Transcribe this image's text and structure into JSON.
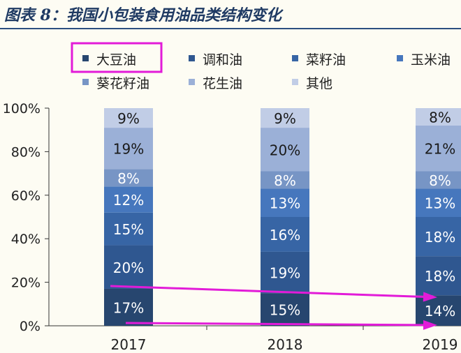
{
  "title": "图表 8：我国小包装食用油品类结构变化",
  "colors": {
    "background": "#fdfcf3",
    "title": "#1f3a63",
    "axis": "#333333",
    "highlight": "#e21bd8"
  },
  "chart_data": {
    "type": "bar",
    "stacked": true,
    "percent": true,
    "categories": [
      "2017",
      "2018",
      "2019"
    ],
    "ylim": [
      0,
      100
    ],
    "yticks": [
      "0%",
      "20%",
      "40%",
      "60%",
      "80%",
      "100%"
    ],
    "legend_position": "top",
    "highlighted_legend_item": "大豆油",
    "series": [
      {
        "name": "大豆油",
        "values": [
          17,
          15,
          14
        ],
        "labels": [
          "17%",
          "15%",
          "14%"
        ],
        "color": "#27466f"
      },
      {
        "name": "调和油",
        "values": [
          20,
          19,
          18
        ],
        "labels": [
          "20%",
          "19%",
          "18%"
        ],
        "color": "#2f5790"
      },
      {
        "name": "菜籽油",
        "values": [
          15,
          16,
          18
        ],
        "labels": [
          "15%",
          "16%",
          "18%"
        ],
        "color": "#3765a5"
      },
      {
        "name": "玉米油",
        "values": [
          12,
          13,
          13
        ],
        "labels": [
          "12%",
          "13%",
          "13%"
        ],
        "color": "#4677bd"
      },
      {
        "name": "葵花籽油",
        "values": [
          8,
          8,
          8
        ],
        "labels": [
          "8%",
          "8%",
          "8%"
        ],
        "color": "#7795c5"
      },
      {
        "name": "花生油",
        "values": [
          19,
          20,
          21
        ],
        "labels": [
          "19%",
          "20%",
          "21%"
        ],
        "color": "#9bb0d7"
      },
      {
        "name": "其他",
        "values": [
          9,
          9,
          8
        ],
        "labels": [
          "9%",
          "9%",
          "8%"
        ],
        "color": "#c1cde6"
      }
    ]
  }
}
